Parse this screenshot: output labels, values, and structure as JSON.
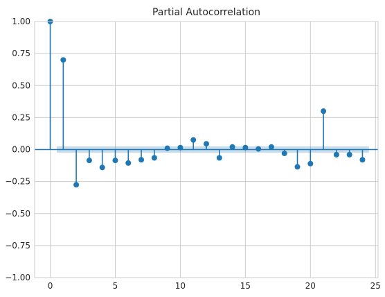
{
  "chart_data": {
    "type": "stem",
    "title": "Partial Autocorrelation",
    "xlabel": "",
    "ylabel": "",
    "xlim": [
      -1.2,
      25.2
    ],
    "ylim": [
      -1.0,
      1.0
    ],
    "xticks": [
      0,
      5,
      10,
      15,
      20,
      25
    ],
    "yticks": [
      -1.0,
      -0.75,
      -0.5,
      -0.25,
      0.0,
      0.25,
      0.5,
      0.75,
      1.0
    ],
    "xtick_labels": [
      "0",
      "5",
      "10",
      "15",
      "20",
      "25"
    ],
    "ytick_labels": [
      "−1.00",
      "−0.75",
      "−0.50",
      "−0.25",
      "0.00",
      "0.25",
      "0.50",
      "0.75",
      "1.00"
    ],
    "grid": true,
    "lags": [
      0,
      1,
      2,
      3,
      4,
      5,
      6,
      7,
      8,
      9,
      10,
      11,
      12,
      13,
      14,
      15,
      16,
      17,
      18,
      19,
      20,
      21,
      22,
      23,
      24
    ],
    "values": [
      1.0,
      0.7,
      -0.275,
      -0.085,
      -0.14,
      -0.085,
      -0.105,
      -0.08,
      -0.065,
      0.01,
      0.015,
      0.075,
      0.045,
      -0.065,
      0.02,
      0.015,
      0.005,
      0.02,
      -0.03,
      -0.135,
      -0.11,
      0.3,
      -0.04,
      -0.04,
      -0.08
    ],
    "confidence_band": {
      "lower": -0.025,
      "upper": 0.025,
      "x_start": 0.5,
      "x_end": 24.5
    },
    "colors": {
      "stem": "#1f77b4",
      "band": "#1f77b4",
      "grid": "#cccccc",
      "axes_edge": "#cccccc"
    }
  }
}
